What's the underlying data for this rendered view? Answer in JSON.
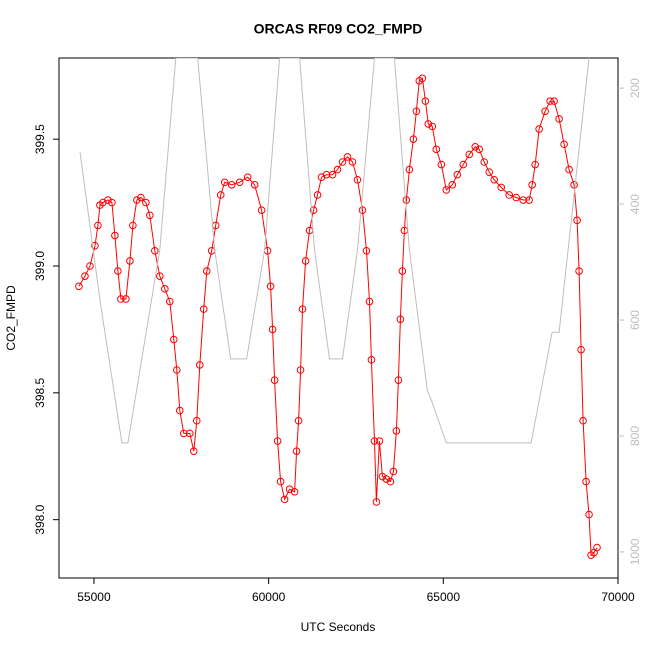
{
  "chart_data": {
    "type": "scatter",
    "title": "ORCAS RF09 CO2_FMPD",
    "xlabel": "UTC Seconds",
    "ylabel": "CO2_FMPD",
    "xlim": [
      54000,
      70000
    ],
    "xticks": [
      55000,
      60000,
      65000,
      70000
    ],
    "ylim": [
      397.77,
      399.82
    ],
    "yticks": [
      {
        "value": 398,
        "label": "398.0"
      },
      398.5,
      {
        "value": 399,
        "label": "399.0"
      },
      399.5
    ],
    "y2lim": [
      148,
      1045
    ],
    "y2_reversed": true,
    "y2ticks": [
      200,
      400,
      600,
      800,
      1000
    ],
    "series": [
      {
        "color": "#ff0000",
        "mark": "circle-line",
        "x": [
          54571,
          54743,
          54886,
          55029,
          55114,
          55171,
          55257,
          55400,
          55514,
          55600,
          55686,
          55771,
          55914,
          56029,
          56114,
          56229,
          56343,
          56486,
          56600,
          56743,
          56886,
          57029,
          57171,
          57286,
          57371,
          57457,
          57571,
          57743,
          57857,
          57943,
          58029,
          58143,
          58229,
          58371,
          58486,
          58629,
          58743,
          58943,
          59171,
          59400,
          59600,
          59800,
          59971,
          60057,
          60114,
          60171,
          60257,
          60343,
          60457,
          60600,
          60743,
          60800,
          60857,
          60914,
          60971,
          61057,
          61171,
          61286,
          61400,
          61514,
          61657,
          61829,
          61971,
          62114,
          62257,
          62400,
          62543,
          62686,
          62800,
          62886,
          62943,
          63029,
          63086,
          63171,
          63257,
          63371,
          63486,
          63571,
          63657,
          63714,
          63771,
          63829,
          63886,
          63943,
          64029,
          64143,
          64229,
          64314,
          64400,
          64486,
          64571,
          64686,
          64800,
          64943,
          65086,
          65257,
          65400,
          65571,
          65743,
          65914,
          66029,
          66171,
          66314,
          66457,
          66657,
          66886,
          67086,
          67286,
          67457,
          67543,
          67629,
          67743,
          67914,
          68057,
          68171,
          68314,
          68457,
          68600,
          68743,
          68829,
          68886,
          68943,
          69000,
          69086,
          69171,
          69229,
          69314,
          69400
        ],
        "values": [
          398.92,
          398.96,
          399.0,
          399.08,
          399.16,
          399.24,
          399.25,
          399.26,
          399.25,
          399.12,
          398.98,
          398.87,
          398.87,
          399.02,
          399.16,
          399.26,
          399.27,
          399.25,
          399.2,
          399.06,
          398.96,
          398.91,
          398.86,
          398.71,
          398.59,
          398.43,
          398.34,
          398.34,
          398.27,
          398.39,
          398.61,
          398.83,
          398.98,
          399.06,
          399.16,
          399.28,
          399.33,
          399.32,
          399.33,
          399.35,
          399.32,
          399.22,
          399.06,
          398.92,
          398.75,
          398.55,
          398.31,
          398.15,
          398.08,
          398.12,
          398.11,
          398.27,
          398.39,
          398.59,
          398.83,
          399.02,
          399.14,
          399.22,
          399.28,
          399.35,
          399.36,
          399.36,
          399.38,
          399.41,
          399.43,
          399.41,
          399.34,
          399.22,
          399.06,
          398.86,
          398.63,
          398.31,
          398.07,
          398.31,
          398.17,
          398.16,
          398.15,
          398.19,
          398.35,
          398.55,
          398.79,
          398.98,
          399.14,
          399.26,
          399.38,
          399.5,
          399.61,
          399.73,
          399.74,
          399.65,
          399.56,
          399.55,
          399.46,
          399.4,
          399.3,
          399.32,
          399.36,
          399.4,
          399.44,
          399.47,
          399.46,
          399.41,
          399.37,
          399.34,
          399.31,
          399.28,
          399.27,
          399.26,
          399.26,
          399.32,
          399.4,
          399.54,
          399.61,
          399.65,
          399.65,
          399.58,
          399.48,
          399.38,
          399.32,
          399.18,
          398.98,
          398.67,
          398.39,
          398.15,
          398.02,
          397.86,
          397.87,
          397.89
        ]
      },
      {
        "color": "#bebebe",
        "mark": "line",
        "axis": "y2",
        "x": [
          54600,
          55171,
          55800,
          55971,
          56886,
          57343,
          57971,
          58457,
          58914,
          59371,
          59886,
          60314,
          60886,
          61314,
          61743,
          62114,
          62543,
          63029,
          63600,
          64029,
          64543,
          64657,
          65086,
          67514,
          68114,
          68314,
          69171
        ],
        "values": [
          310,
          565,
          812,
          812,
          479,
          148,
          148,
          479,
          667,
          667,
          479,
          148,
          148,
          479,
          667,
          667,
          479,
          148,
          148,
          479,
          721,
          738,
          812,
          812,
          621,
          621,
          148
        ]
      }
    ]
  }
}
